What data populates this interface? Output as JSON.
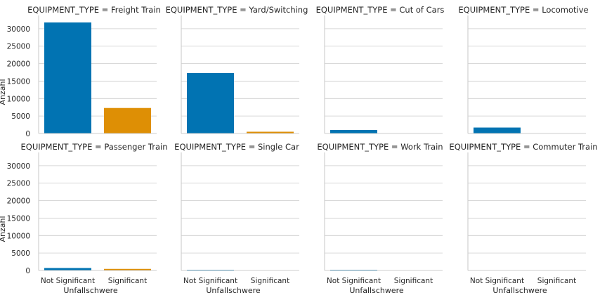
{
  "chart_data": {
    "type": "bar",
    "facet_variable": "EQUIPMENT_TYPE",
    "xlabel": "Unfallschwere",
    "ylabel": "Anzahl",
    "categories": [
      "Not Significant",
      "Significant"
    ],
    "yticks": [
      0,
      5000,
      10000,
      15000,
      20000,
      25000,
      30000
    ],
    "ylim": [
      0,
      33800
    ],
    "grid": true,
    "colors": {
      "Not Significant": "#0173b2",
      "Significant": "#de8f05"
    },
    "facets": [
      {
        "title": "EQUIPMENT_TYPE = Freight Train",
        "values": [
          31800,
          7300
        ]
      },
      {
        "title": "EQUIPMENT_TYPE = Yard/Switching",
        "values": [
          17300,
          500
        ]
      },
      {
        "title": "EQUIPMENT_TYPE = Cut of Cars",
        "values": [
          1000,
          0
        ]
      },
      {
        "title": "EQUIPMENT_TYPE = Locomotive",
        "values": [
          1700,
          0
        ]
      },
      {
        "title": "EQUIPMENT_TYPE = Passenger Train",
        "values": [
          700,
          450
        ]
      },
      {
        "title": "EQUIPMENT_TYPE = Single Car",
        "values": [
          200,
          0
        ]
      },
      {
        "title": "EQUIPMENT_TYPE = Work Train",
        "values": [
          200,
          0
        ]
      },
      {
        "title": "EQUIPMENT_TYPE = Commuter Train",
        "values": [
          0,
          0
        ]
      }
    ]
  }
}
